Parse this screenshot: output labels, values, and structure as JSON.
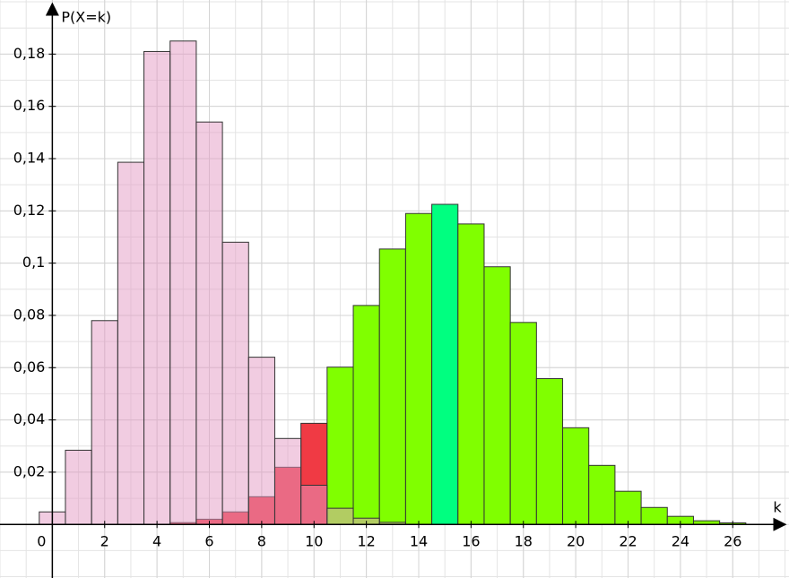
{
  "chart_data": {
    "type": "bar",
    "x_label": "k",
    "y_label": "P(X=k)",
    "xlim": [
      -2,
      28.15
    ],
    "ylim": [
      -0.0205,
      0.2007
    ],
    "xticks": [
      0,
      2,
      4,
      6,
      8,
      10,
      12,
      14,
      16,
      18,
      20,
      22,
      24,
      26
    ],
    "yticks": [
      {
        "value": 0.02,
        "label": "0,02"
      },
      {
        "value": 0.04,
        "label": "0,04"
      },
      {
        "value": 0.06,
        "label": "0,06"
      },
      {
        "value": 0.08,
        "label": "0,08"
      },
      {
        "value": 0.1,
        "label": "0,1"
      },
      {
        "value": 0.12,
        "label": "0,12"
      },
      {
        "value": 0.14,
        "label": "0,14"
      },
      {
        "value": 0.16,
        "label": "0,16"
      },
      {
        "value": 0.18,
        "label": "0,18"
      }
    ],
    "grid": true,
    "series": [
      {
        "x": [
          5,
          6,
          7,
          8,
          9,
          10,
          11,
          12,
          13,
          14,
          15,
          16,
          17,
          18,
          19,
          20,
          21,
          22,
          23,
          24,
          25,
          26
        ],
        "values": [
          0.0007,
          0.002,
          0.0048,
          0.0106,
          0.0219,
          0.0387,
          0.0602,
          0.0838,
          0.1054,
          0.119,
          0.1225,
          0.115,
          0.0986,
          0.0773,
          0.0558,
          0.037,
          0.0226,
          0.0127,
          0.0065,
          0.0031,
          0.0014,
          0.0006
        ],
        "colors": [
          "#f03a44",
          "#f03a44",
          "#f03a44",
          "#f03a44",
          "#f03a44",
          "#f03a44",
          "#80ff00",
          "#80ff00",
          "#80ff00",
          "#80ff00",
          "#00ff80",
          "#80ff00",
          "#80ff00",
          "#80ff00",
          "#80ff00",
          "#80ff00",
          "#80ff00",
          "#80ff00",
          "#80ff00",
          "#80ff00",
          "#80ff00",
          "#80ff00"
        ]
      },
      {
        "x": [
          0,
          1,
          2,
          3,
          4,
          5,
          6,
          7,
          8,
          9,
          10,
          11,
          12,
          13
        ],
        "values": [
          0.0048,
          0.0284,
          0.078,
          0.1386,
          0.181,
          0.185,
          0.154,
          0.108,
          0.064,
          0.0329,
          0.015,
          0.0062,
          0.0024,
          0.0008
        ],
        "color": "#e49ac4",
        "opacity": 0.5
      }
    ]
  }
}
